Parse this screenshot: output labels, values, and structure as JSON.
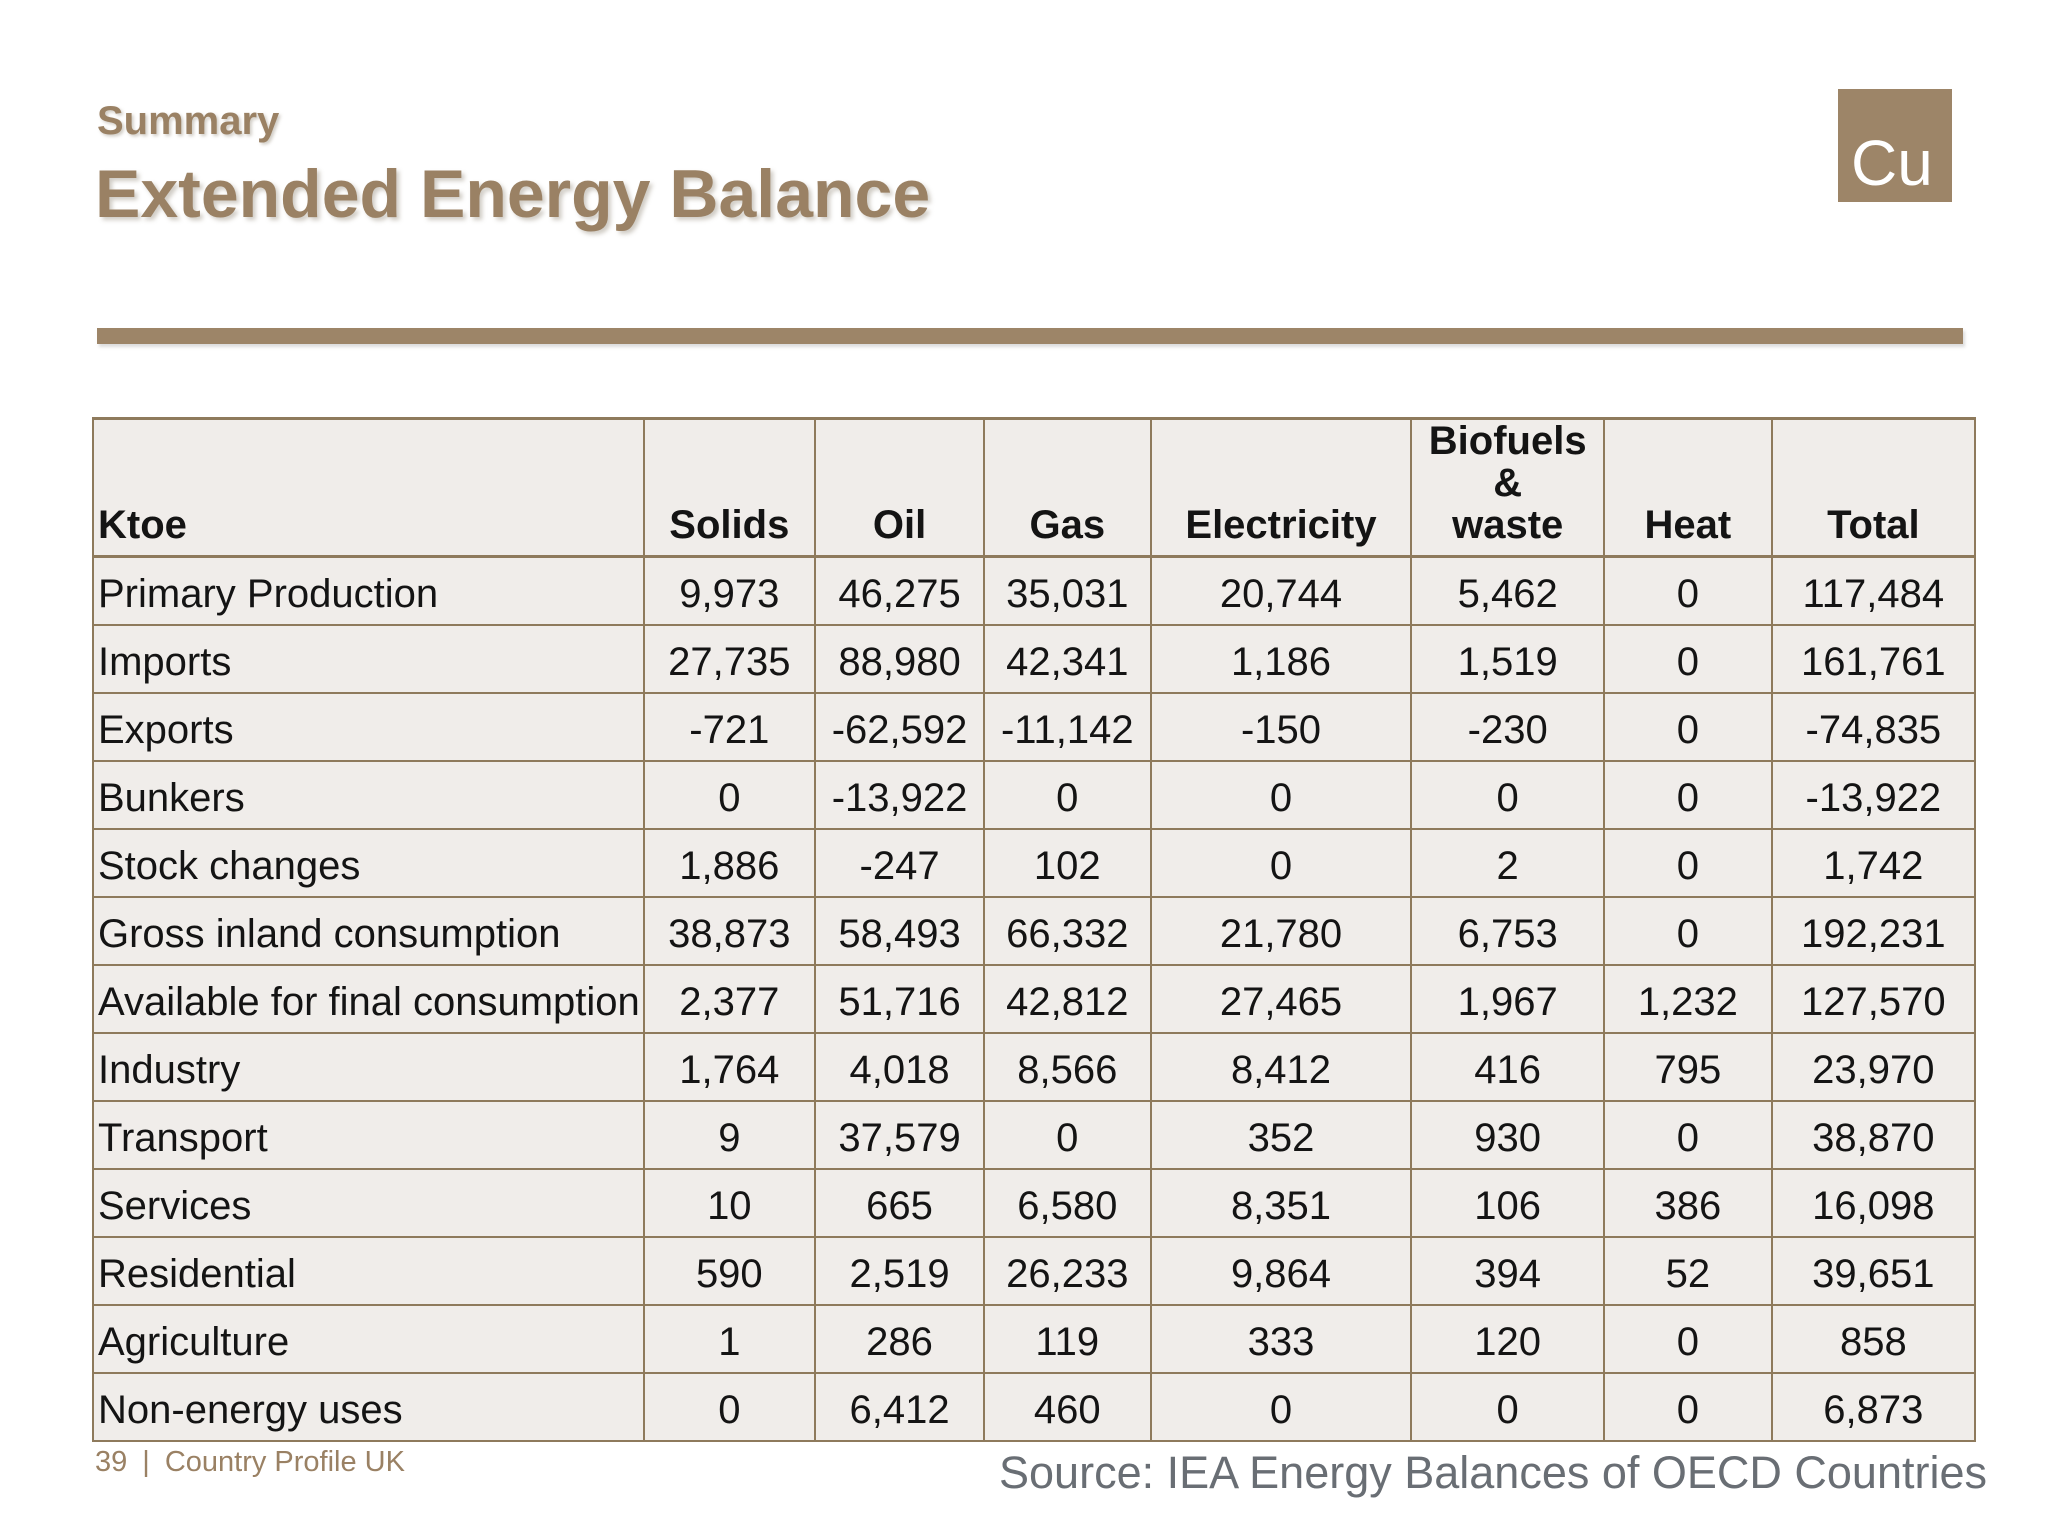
{
  "slide": {
    "eyebrow": "Summary",
    "title": "Extended Energy Balance",
    "logo_text": "Cu"
  },
  "colors": {
    "brand_brown": "#9a8164",
    "divider_brown": "#9d8568",
    "table_border": "#8e7a5c",
    "cell_background": "#f0edea",
    "source_gray": "#696e74"
  },
  "table": {
    "unit_header": "Ktoe",
    "columns": [
      "Solids",
      "Oil",
      "Gas",
      "Electricity",
      "Biofuels &\nwaste",
      "Heat",
      "Total"
    ],
    "rows": [
      {
        "label": "Primary Production",
        "values": [
          "9,973",
          "46,275",
          "35,031",
          "20,744",
          "5,462",
          "0",
          "117,484"
        ]
      },
      {
        "label": "Imports",
        "values": [
          "27,735",
          "88,980",
          "42,341",
          "1,186",
          "1,519",
          "0",
          "161,761"
        ]
      },
      {
        "label": "Exports",
        "values": [
          "-721",
          "-62,592",
          "-11,142",
          "-150",
          "-230",
          "0",
          "-74,835"
        ]
      },
      {
        "label": "Bunkers",
        "values": [
          "0",
          "-13,922",
          "0",
          "0",
          "0",
          "0",
          "-13,922"
        ]
      },
      {
        "label": "Stock changes",
        "values": [
          "1,886",
          "-247",
          "102",
          "0",
          "2",
          "0",
          "1,742"
        ]
      },
      {
        "label": "Gross inland consumption",
        "values": [
          "38,873",
          "58,493",
          "66,332",
          "21,780",
          "6,753",
          "0",
          "192,231"
        ]
      },
      {
        "label": "Available for final consumption",
        "values": [
          "2,377",
          "51,716",
          "42,812",
          "27,465",
          "1,967",
          "1,232",
          "127,570"
        ]
      },
      {
        "label": "Industry",
        "values": [
          "1,764",
          "4,018",
          "8,566",
          "8,412",
          "416",
          "795",
          "23,970"
        ]
      },
      {
        "label": "Transport",
        "values": [
          "9",
          "37,579",
          "0",
          "352",
          "930",
          "0",
          "38,870"
        ]
      },
      {
        "label": "Services",
        "values": [
          "10",
          "665",
          "6,580",
          "8,351",
          "106",
          "386",
          "16,098"
        ]
      },
      {
        "label": "Residential",
        "values": [
          "590",
          "2,519",
          "26,233",
          "9,864",
          "394",
          "52",
          "39,651"
        ]
      },
      {
        "label": "Agriculture",
        "values": [
          "1",
          "286",
          "119",
          "333",
          "120",
          "0",
          "858"
        ]
      },
      {
        "label": "Non-energy uses",
        "values": [
          "0",
          "6,412",
          "460",
          "0",
          "0",
          "0",
          "6,873"
        ]
      }
    ]
  },
  "footer": {
    "page_number": "39",
    "separator": "|",
    "label": "Country Profile UK",
    "source": "Source: IEA Energy Balances of OECD Countries"
  }
}
